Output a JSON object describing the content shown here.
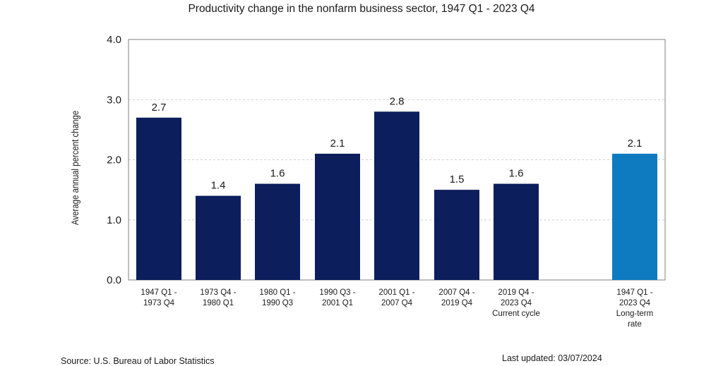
{
  "chart_data": {
    "type": "bar",
    "title": "Productivity change in the nonfarm business sector, 1947 Q1 - 2023 Q4",
    "ylabel": "Average annual percent change",
    "xlabel": "",
    "ylim": [
      0,
      4.0
    ],
    "yticks": [
      "0.0",
      "1.0",
      "2.0",
      "3.0",
      "4.0"
    ],
    "grid": true,
    "bars": [
      {
        "label": [
          "1947 Q1 -",
          "1973 Q4"
        ],
        "value": 2.7,
        "display": "2.7",
        "color": "#0c1e5b"
      },
      {
        "label": [
          "1973 Q4 -",
          "1980 Q1"
        ],
        "value": 1.4,
        "display": "1.4",
        "color": "#0c1e5b"
      },
      {
        "label": [
          "1980 Q1 -",
          "1990 Q3"
        ],
        "value": 1.6,
        "display": "1.6",
        "color": "#0c1e5b"
      },
      {
        "label": [
          "1990 Q3 -",
          "2001 Q1"
        ],
        "value": 2.1,
        "display": "2.1",
        "color": "#0c1e5b"
      },
      {
        "label": [
          "2001 Q1 -",
          "2007 Q4"
        ],
        "value": 2.8,
        "display": "2.8",
        "color": "#0c1e5b"
      },
      {
        "label": [
          "2007 Q4 -",
          "2019 Q4"
        ],
        "value": 1.5,
        "display": "1.5",
        "color": "#0c1e5b"
      },
      {
        "label": [
          "2019 Q4 -",
          "2023 Q4",
          "Current cycle"
        ],
        "value": 1.6,
        "display": "1.6",
        "color": "#0c1e5b"
      },
      {
        "label": [
          "1947 Q1 -",
          "2023 Q4",
          "Long-term",
          "rate"
        ],
        "value": 2.1,
        "display": "2.1",
        "color": "#0e7bc0"
      }
    ]
  },
  "footer": {
    "source": "Source: U.S. Bureau of Labor Statistics",
    "updated": "Last updated: 03/07/2024"
  }
}
